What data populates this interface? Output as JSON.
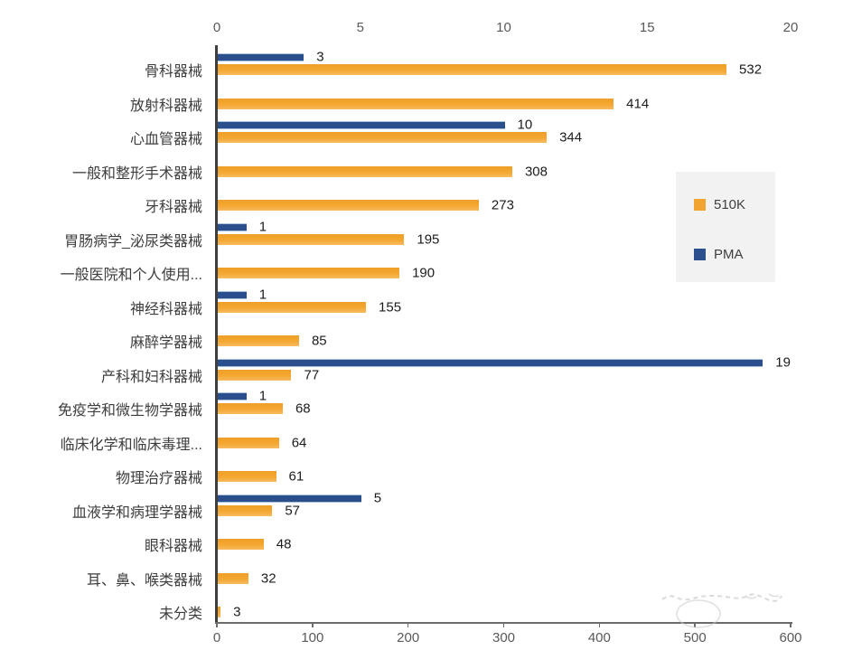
{
  "chart_data": {
    "type": "bar",
    "orientation": "horizontal",
    "title": "",
    "categories": [
      "骨科器械",
      "放射科器械",
      "心血管器械",
      "一般和整形手术器械",
      "牙科器械",
      "胃肠病学_泌尿类器械",
      "一般医院和个人使用...",
      "神经科器械",
      "麻醉学器械",
      "产科和妇科器械",
      "免疫学和微生物学器械",
      "临床化学和临床毒理...",
      "物理治疗器械",
      "血液学和病理学器械",
      "眼科器械",
      "耳、鼻、喉类器械",
      "未分类"
    ],
    "series": [
      {
        "name": "510K",
        "color": "#f2a431",
        "axis": "bottom",
        "values": [
          532,
          414,
          344,
          308,
          273,
          195,
          190,
          155,
          85,
          77,
          68,
          64,
          61,
          57,
          48,
          32,
          3
        ]
      },
      {
        "name": "PMA",
        "color": "#2b4e8c",
        "axis": "top",
        "values": [
          3,
          null,
          10,
          null,
          null,
          1,
          null,
          1,
          null,
          19,
          1,
          null,
          null,
          5,
          null,
          null,
          null
        ]
      }
    ],
    "axes": {
      "top": {
        "ticks": [
          "0",
          "5",
          "10",
          "15",
          "20"
        ],
        "max": 20
      },
      "bottom": {
        "ticks": [
          "0",
          "100",
          "200",
          "300",
          "400",
          "500",
          "600"
        ],
        "max": 600
      }
    },
    "legend": {
      "position": "right",
      "entries": [
        {
          "label": "510K",
          "color": "#f2a431"
        },
        {
          "label": "PMA",
          "color": "#2b4e8c"
        }
      ]
    },
    "grid": false
  },
  "colors": {
    "axis_line": "#3f3f3f",
    "tick_label": "#595959",
    "category_label": "#3d3d3d",
    "value_label": "#1c1c1c",
    "legend_background": "#f2f2f2",
    "background": "#ffffff"
  }
}
